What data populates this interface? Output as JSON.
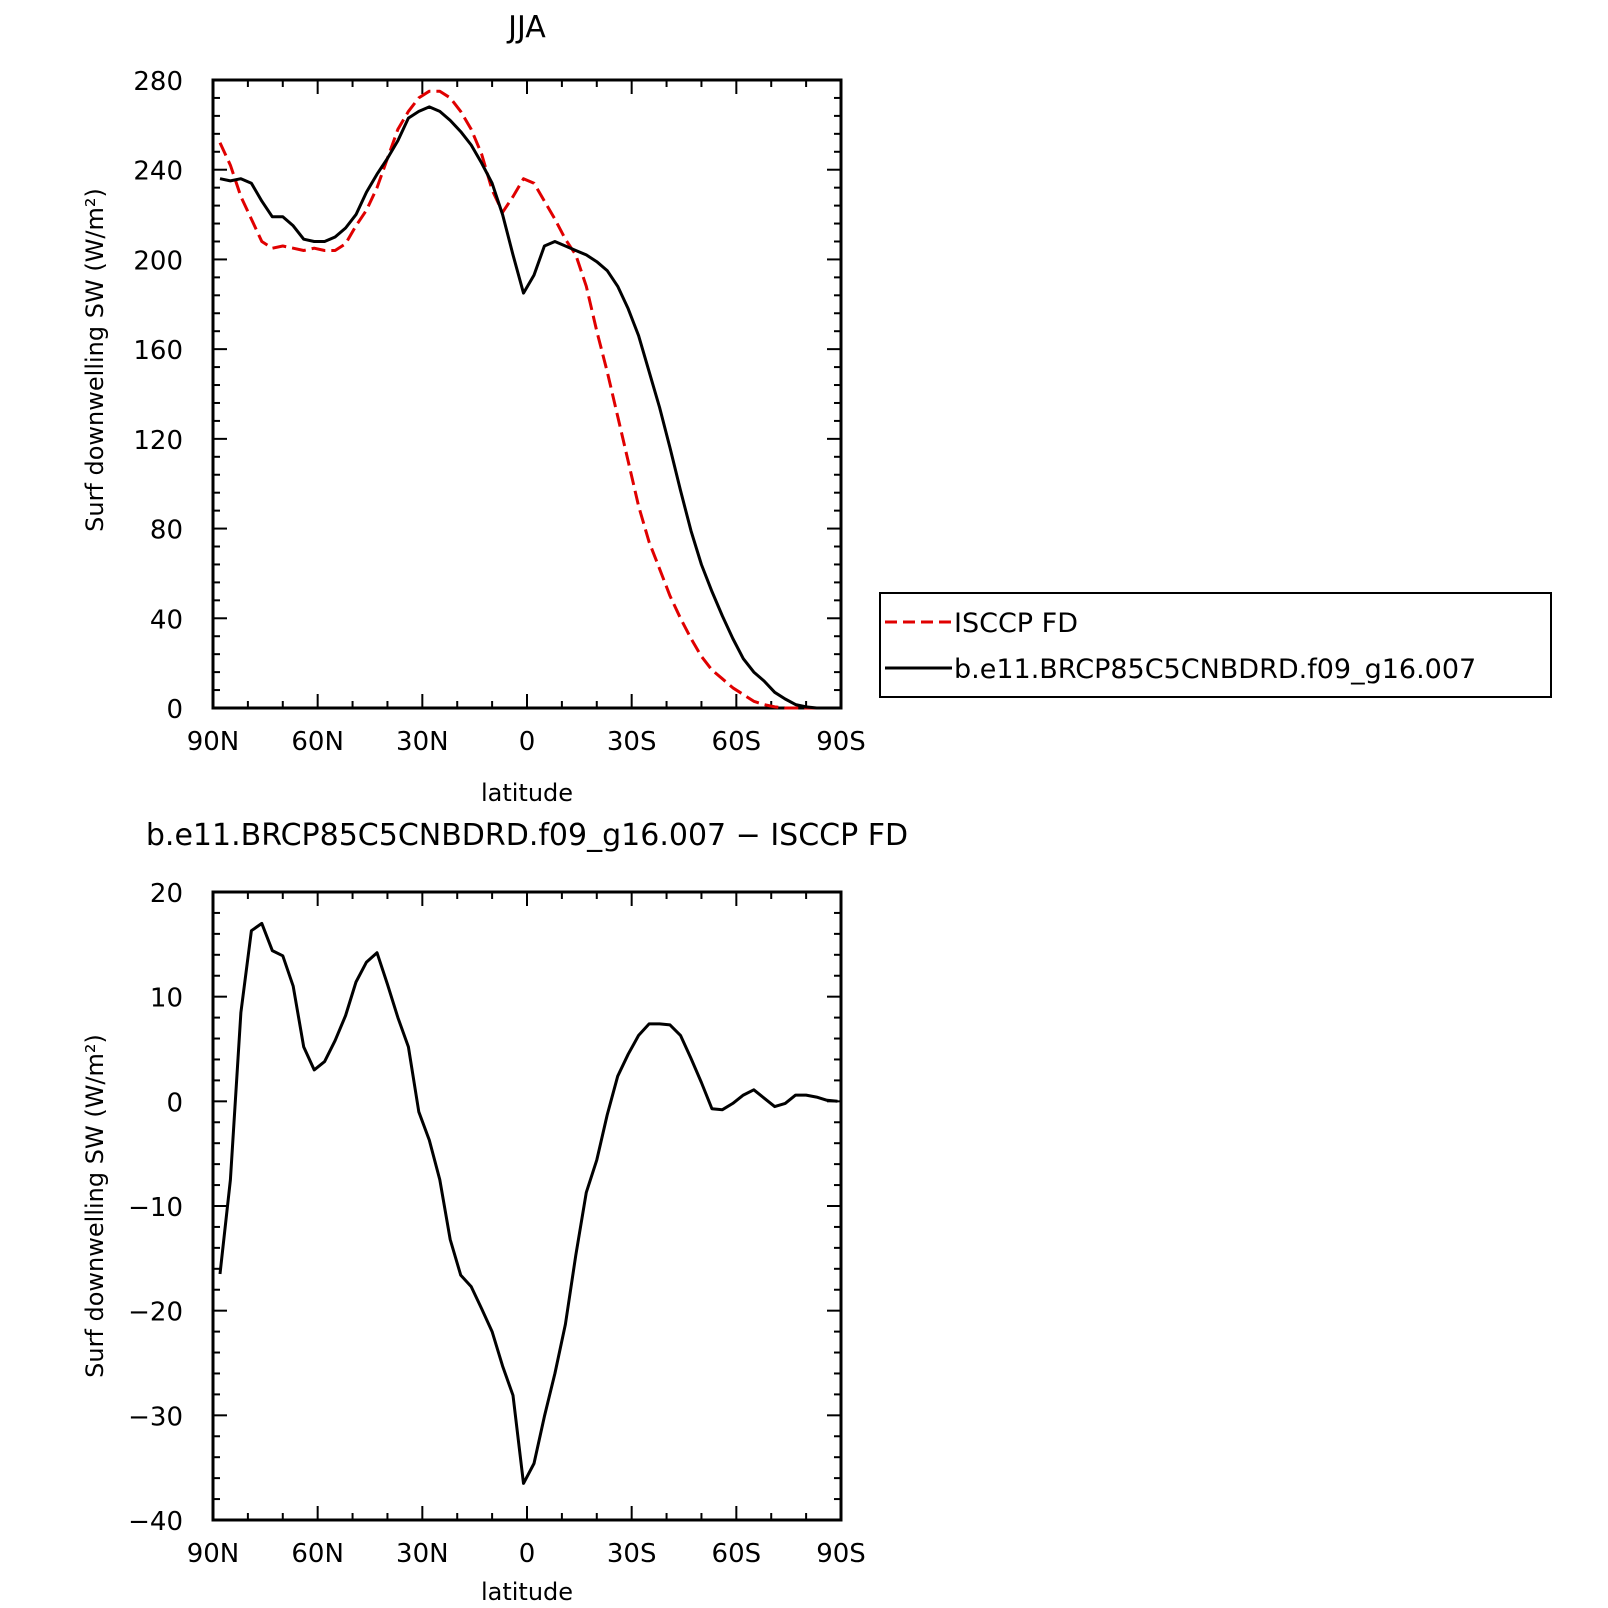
{
  "chart_data": [
    {
      "type": "line",
      "title": "JJA",
      "xlabel": "latitude",
      "ylabel": "Surf downwelling SW (W/m²)",
      "xlim": [
        90,
        -90
      ],
      "ylim": [
        0,
        280
      ],
      "xticks": [
        {
          "value": 90,
          "label": "90N"
        },
        {
          "value": 60,
          "label": "60N"
        },
        {
          "value": 30,
          "label": "30N"
        },
        {
          "value": 0,
          "label": "0"
        },
        {
          "value": -30,
          "label": "30S"
        },
        {
          "value": -60,
          "label": "60S"
        },
        {
          "value": -90,
          "label": "90S"
        }
      ],
      "yticks": [
        0,
        40,
        80,
        120,
        160,
        200,
        240,
        280
      ],
      "legend": {
        "placement": "right",
        "entries": [
          "ISCCP FD",
          "b.e11.BRCP85C5CNBDRD.f09_g16.007"
        ]
      },
      "series": [
        {
          "name": "ISCCP FD",
          "color": "#e00000",
          "dash": "dashed",
          "x": [
            88,
            85,
            82,
            79,
            76,
            73,
            70,
            67,
            64,
            61,
            58,
            55,
            52,
            49,
            46,
            43,
            40,
            37,
            34,
            31,
            28,
            25,
            22,
            19,
            16,
            13,
            10,
            7,
            4,
            1,
            -2,
            -5,
            -8,
            -11,
            -14,
            -17,
            -20,
            -23,
            -26,
            -29,
            -32,
            -35,
            -38,
            -41,
            -44,
            -47,
            -50,
            -53,
            -56,
            -59,
            -62,
            -65,
            -68,
            -71,
            -74,
            -77,
            -80,
            -83,
            -86,
            -89
          ],
          "y": [
            252,
            242,
            228,
            218,
            208,
            205,
            206,
            205,
            204,
            205,
            204,
            204,
            207,
            215,
            222,
            232,
            245,
            258,
            266,
            272,
            275,
            275,
            272,
            266,
            258,
            247,
            231,
            221,
            228,
            236,
            234,
            226,
            218,
            209,
            202,
            188,
            168,
            150,
            130,
            110,
            90,
            74,
            62,
            50,
            40,
            31,
            23,
            17,
            13,
            9,
            6,
            3,
            1.5,
            0.5,
            0,
            0,
            0,
            0,
            0,
            0
          ]
        },
        {
          "name": "b.e11.BRCP85C5CNBDRD.f09_g16.007",
          "color": "#000000",
          "dash": "solid",
          "x": [
            88,
            85,
            82,
            79,
            76,
            73,
            70,
            67,
            64,
            61,
            58,
            55,
            52,
            49,
            46,
            43,
            40,
            37,
            34,
            31,
            28,
            25,
            22,
            19,
            16,
            13,
            10,
            7,
            4,
            1,
            -2,
            -5,
            -8,
            -11,
            -14,
            -17,
            -20,
            -23,
            -26,
            -29,
            -32,
            -35,
            -38,
            -41,
            -44,
            -47,
            -50,
            -53,
            -56,
            -59,
            -62,
            -65,
            -68,
            -71,
            -74,
            -77,
            -80,
            -83,
            -86,
            -89
          ],
          "y": [
            236,
            235,
            236,
            234,
            226,
            219,
            219,
            215,
            209,
            208,
            208,
            210,
            214,
            220,
            230,
            238,
            245,
            253,
            263,
            266,
            268,
            266,
            262,
            257,
            251,
            243,
            234,
            220,
            202,
            185,
            193,
            206,
            208,
            206,
            204,
            202,
            199,
            195,
            188,
            178,
            166,
            150,
            134,
            116,
            97,
            79,
            64,
            52,
            41,
            31,
            22,
            16,
            12,
            7,
            4,
            1.5,
            0.5,
            0,
            0,
            0
          ]
        }
      ]
    },
    {
      "type": "line",
      "title": "b.e11.BRCP85C5CNBDRD.f09_g16.007 − ISCCP FD",
      "xlabel": "latitude",
      "ylabel": "Surf downwelling SW (W/m²)",
      "xlim": [
        90,
        -90
      ],
      "ylim": [
        -40,
        20
      ],
      "xticks": [
        {
          "value": 90,
          "label": "90N"
        },
        {
          "value": 60,
          "label": "60N"
        },
        {
          "value": 30,
          "label": "30N"
        },
        {
          "value": 0,
          "label": "0"
        },
        {
          "value": -30,
          "label": "30S"
        },
        {
          "value": -60,
          "label": "60S"
        },
        {
          "value": -90,
          "label": "90S"
        }
      ],
      "yticks": [
        -40,
        -30,
        -20,
        -10,
        0,
        10,
        20
      ],
      "series": [
        {
          "color": "#000000",
          "dash": "solid",
          "x": [
            88,
            85,
            82,
            79,
            76,
            73,
            70,
            67,
            64,
            61,
            58,
            55,
            52,
            49,
            46,
            43,
            40,
            37,
            34,
            31,
            28,
            25,
            22,
            19,
            16,
            13,
            10,
            7,
            4,
            1,
            -2,
            -5,
            -8,
            -11,
            -14,
            -17,
            -20,
            -23,
            -26,
            -29,
            -32,
            -35,
            -38,
            -41,
            -44,
            -47,
            -50,
            -53,
            -56,
            -59,
            -62,
            -65,
            -68,
            -71,
            -74,
            -77,
            -80,
            -83,
            -86,
            -89
          ],
          "y": [
            -16.5,
            -7.5,
            8.5,
            16.3,
            17,
            14.4,
            13.9,
            11,
            5.2,
            3,
            3.8,
            5.8,
            8.2,
            11.4,
            13.3,
            14.2,
            11.2,
            8,
            5.2,
            -1,
            -3.7,
            -7.5,
            -13.2,
            -16.6,
            -17.7,
            -19.8,
            -22,
            -25.3,
            -28.1,
            -36.5,
            -34.6,
            -30.1,
            -26,
            -21.3,
            -14.7,
            -8.7,
            -5.6,
            -1.3,
            2.4,
            4.5,
            6.3,
            7.4,
            7.4,
            7.3,
            6.3,
            4.1,
            1.8,
            -0.7,
            -0.8,
            -0.2,
            0.6,
            1.1,
            0.3,
            -0.5,
            -0.2,
            0.6,
            0.6,
            0.4,
            0.1,
            0
          ]
        }
      ]
    }
  ]
}
